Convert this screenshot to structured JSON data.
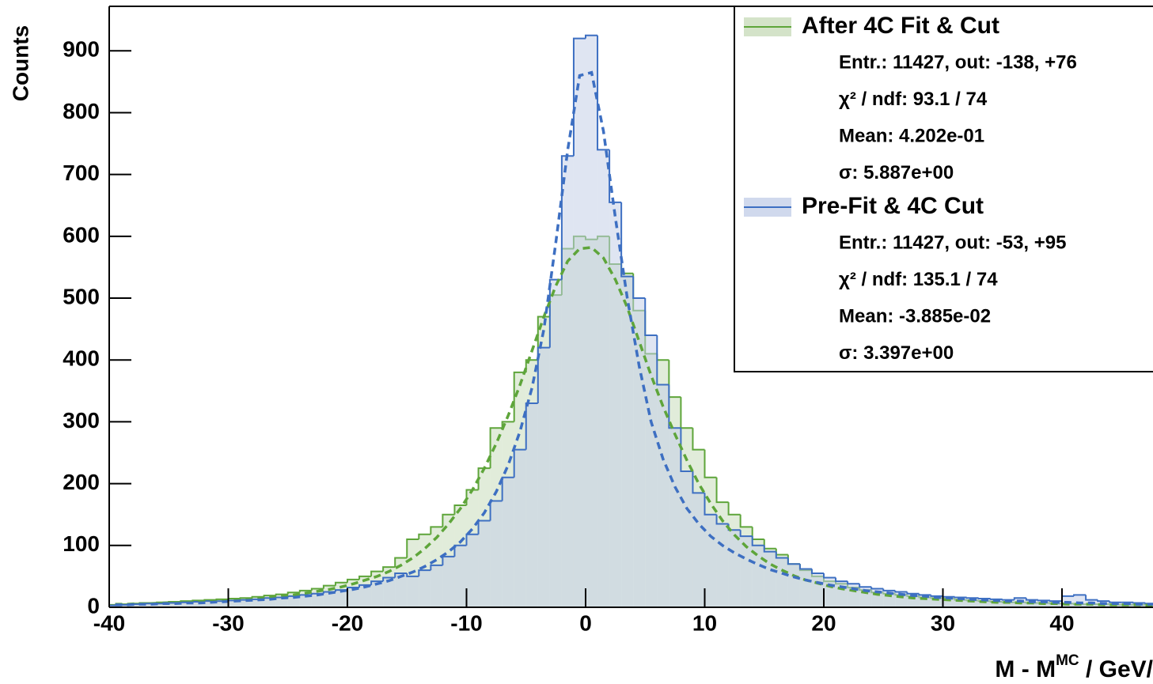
{
  "chart_data": {
    "type": "histogram",
    "ylabel": "Counts",
    "xlabel": {
      "main": "M - M",
      "superscript": "MC",
      "rest": " / GeV/"
    },
    "xlim": [
      -40,
      50
    ],
    "ylim": [
      0,
      972
    ],
    "xticks": [
      -40,
      -30,
      -20,
      -10,
      0,
      10,
      20,
      30,
      40
    ],
    "yticks": [
      0,
      100,
      200,
      300,
      400,
      500,
      600,
      700,
      800,
      900
    ],
    "legend": "upper right",
    "bins": [
      -40,
      -39,
      -38,
      -37,
      -36,
      -35,
      -34,
      -33,
      -32,
      -31,
      -30,
      -29,
      -28,
      -27,
      -26,
      -25,
      -24,
      -23,
      -22,
      -21,
      -20,
      -19,
      -18,
      -17,
      -16,
      -15,
      -14,
      -13,
      -12,
      -11,
      -10,
      -9,
      -8,
      -7,
      -6,
      -5,
      -4,
      -3,
      -2,
      -1,
      0,
      1,
      2,
      3,
      4,
      5,
      6,
      7,
      8,
      9,
      10,
      11,
      12,
      13,
      14,
      15,
      16,
      17,
      18,
      19,
      20,
      21,
      22,
      23,
      24,
      25,
      26,
      27,
      28,
      29,
      30,
      31,
      32,
      33,
      34,
      35,
      36,
      37,
      38,
      39,
      40,
      41,
      42,
      43,
      44,
      45,
      46,
      47,
      48,
      49,
      50
    ],
    "fit_x": [
      -39.5,
      -38.5,
      -37.5,
      -36.5,
      -35.5,
      -34.5,
      -33.5,
      -32.5,
      -31.5,
      -30.5,
      -29.5,
      -28.5,
      -27.5,
      -26.5,
      -25.5,
      -24.5,
      -23.5,
      -22.5,
      -21.5,
      -20.5,
      -19.5,
      -18.5,
      -17.5,
      -16.5,
      -15.5,
      -14.5,
      -13.5,
      -12.5,
      -11.5,
      -10.5,
      -9.5,
      -8.5,
      -7.5,
      -6.5,
      -5.5,
      -4.5,
      -3.5,
      -2.5,
      -1.5,
      -0.5,
      0.5,
      1.5,
      2.5,
      3.5,
      4.5,
      5.5,
      6.5,
      7.5,
      8.5,
      9.5,
      10.5,
      11.5,
      12.5,
      13.5,
      14.5,
      15.5,
      16.5,
      17.5,
      18.5,
      19.5,
      20.5,
      21.5,
      22.5,
      23.5,
      24.5,
      25.5,
      26.5,
      27.5,
      28.5,
      29.5,
      30.5,
      31.5,
      32.5,
      33.5,
      34.5,
      35.5,
      36.5,
      37.5,
      38.5,
      39.5,
      40.5,
      41.5,
      42.5,
      43.5,
      44.5,
      45.5,
      46.5,
      47.5,
      48.5,
      49.5
    ],
    "series": [
      {
        "name": "After 4C Fit & Cut",
        "color": "#5ea53a",
        "fill": "#c9dcbb",
        "values": [
          4,
          5,
          6,
          7,
          8,
          9,
          10,
          11,
          12,
          13,
          14,
          15,
          17,
          19,
          21,
          24,
          27,
          30,
          35,
          40,
          45,
          50,
          58,
          65,
          80,
          110,
          118,
          130,
          150,
          165,
          190,
          225,
          290,
          300,
          380,
          400,
          470,
          505,
          580,
          600,
          595,
          600,
          555,
          540,
          480,
          410,
          400,
          340,
          290,
          255,
          210,
          170,
          150,
          130,
          110,
          95,
          85,
          70,
          60,
          50,
          42,
          38,
          32,
          28,
          24,
          22,
          20,
          18,
          16,
          15,
          14,
          12,
          11,
          10,
          9,
          8,
          8,
          7,
          7,
          6,
          6,
          5,
          5,
          5,
          4,
          4,
          4,
          4,
          3,
          3
        ],
        "fit_values": [
          5,
          5,
          6,
          6,
          7,
          8,
          8,
          9,
          10,
          11,
          12,
          13,
          15,
          16,
          18,
          20,
          23,
          26,
          29,
          33,
          38,
          44,
          50,
          58,
          68,
          80,
          95,
          113,
          135,
          160,
          190,
          225,
          265,
          310,
          360,
          415,
          470,
          520,
          560,
          580,
          582,
          565,
          530,
          485,
          430,
          375,
          325,
          280,
          238,
          200,
          168,
          140,
          117,
          98,
          83,
          70,
          60,
          51,
          44,
          39,
          34,
          30,
          27,
          24,
          21,
          19,
          17,
          15,
          14,
          13,
          12,
          11,
          10,
          9,
          8,
          8,
          7,
          7,
          6,
          6,
          5,
          5,
          5,
          4,
          4,
          4,
          4,
          3,
          3,
          3
        ],
        "stats": [
          "Entr.: 11427, out: -138, +76",
          "χ² / ndf: 93.1 / 74",
          "Mean: 4.202e-01",
          "σ: 5.887e+00"
        ]
      },
      {
        "name": "Pre-Fit & 4C Cut",
        "color": "#3d6fc2",
        "fill": "#c4cfe8",
        "values": [
          3,
          4,
          5,
          6,
          6,
          7,
          8,
          9,
          10,
          10,
          11,
          12,
          13,
          15,
          16,
          18,
          20,
          22,
          25,
          28,
          32,
          36,
          42,
          48,
          55,
          50,
          60,
          68,
          82,
          100,
          118,
          140,
          172,
          210,
          255,
          330,
          420,
          530,
          730,
          920,
          925,
          740,
          655,
          535,
          500,
          440,
          360,
          290,
          220,
          185,
          150,
          135,
          125,
          115,
          100,
          90,
          80,
          70,
          62,
          55,
          48,
          42,
          38,
          33,
          30,
          27,
          25,
          22,
          20,
          18,
          17,
          16,
          15,
          14,
          13,
          12,
          15,
          12,
          11,
          10,
          18,
          20,
          12,
          10,
          8,
          8,
          7,
          6,
          5,
          5
        ],
        "fit_values": [
          4,
          4,
          5,
          5,
          6,
          6,
          7,
          7,
          8,
          9,
          10,
          11,
          12,
          13,
          15,
          16,
          18,
          20,
          23,
          26,
          29,
          33,
          38,
          43,
          50,
          57,
          66,
          77,
          90,
          106,
          127,
          153,
          187,
          230,
          285,
          355,
          450,
          590,
          740,
          860,
          865,
          770,
          630,
          500,
          390,
          300,
          240,
          195,
          160,
          135,
          115,
          100,
          88,
          78,
          69,
          61,
          55,
          49,
          44,
          40,
          36,
          33,
          30,
          27,
          25,
          23,
          21,
          19,
          18,
          16,
          15,
          14,
          13,
          12,
          11,
          10,
          10,
          9,
          9,
          8,
          8,
          7,
          7,
          6,
          6,
          6,
          5,
          5,
          5,
          5
        ],
        "stats": [
          "Entr.: 11427, out: -53, +95",
          "χ² / ndf: 135.1 / 74",
          "Mean: -3.885e-02",
          "σ: 3.397e+00"
        ]
      }
    ]
  }
}
